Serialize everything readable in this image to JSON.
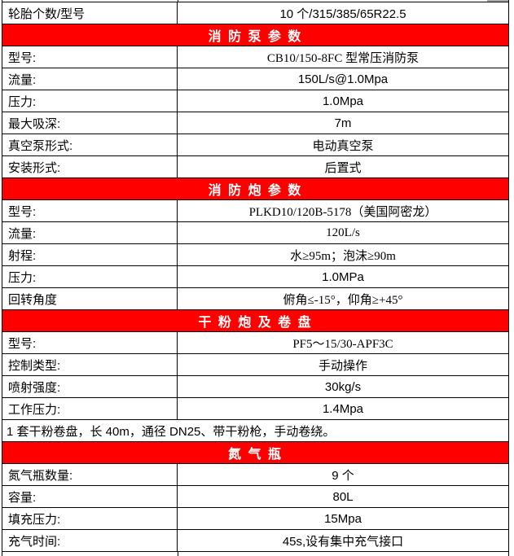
{
  "table": {
    "rows": [
      {
        "type": "kv",
        "label": "轮胎个数/型号",
        "value": "10 个/315/385/65R22.5"
      },
      {
        "type": "section",
        "title": "消 防 泵 参 数"
      },
      {
        "type": "kv",
        "label": "型号:",
        "value": "CB10/150-8FC 型常压消防泵"
      },
      {
        "type": "kv",
        "label": "流量:",
        "value": "150L/s@1.0Mpa"
      },
      {
        "type": "kv",
        "label": "压力:",
        "value": "1.0Mpa"
      },
      {
        "type": "kv",
        "label": "最大吸深:",
        "value": "7m"
      },
      {
        "type": "kv",
        "label": "真空泵形式:",
        "value": "电动真空泵"
      },
      {
        "type": "kv",
        "label": "安装形式:",
        "value": "后置式"
      },
      {
        "type": "section",
        "title": "消 防 炮 参 数"
      },
      {
        "type": "kv",
        "label": "型号:",
        "value": "PLKD10/120B-5178（美国阿密龙）"
      },
      {
        "type": "kv",
        "label": "流量:",
        "value": "120L/s"
      },
      {
        "type": "kv",
        "label": "射程:",
        "value": "水≥95m；泡沫≥90m"
      },
      {
        "type": "kv",
        "label": "压力:",
        "value": "1.0MPa"
      },
      {
        "type": "kv",
        "label": "回转角度",
        "value": "俯角≤-15°，仰角≥+45°"
      },
      {
        "type": "section",
        "title": "干 粉 炮 及 卷 盘"
      },
      {
        "type": "kv",
        "label": "型号:",
        "value": "PF5～15/30-APF3C"
      },
      {
        "type": "kv",
        "label": "控制类型:",
        "value": "手动操作"
      },
      {
        "type": "kv",
        "label": "喷射强度:",
        "value": "30kg/s"
      },
      {
        "type": "kv",
        "label": "工作压力:",
        "value": "1.4Mpa"
      },
      {
        "type": "note",
        "text": "1 套干粉卷盘，长 40m，通径 DN25、带干粉枪，手动卷绕。"
      },
      {
        "type": "section",
        "title": "氮 气 瓶"
      },
      {
        "type": "kv",
        "label": "氮气瓶数量:",
        "value": "9 个"
      },
      {
        "type": "kv",
        "label": "容量:",
        "value": "80L"
      },
      {
        "type": "kv",
        "label": "填充压力:",
        "value": "15Mpa"
      },
      {
        "type": "kv",
        "label": "充气时间:",
        "value": "45s,设有集中充气接口"
      }
    ],
    "colors": {
      "section_background": "#FF0000",
      "section_text": "#FFFFFF",
      "border": "#000000",
      "body_text": "#000000",
      "row_background": "#FFFFFF"
    }
  }
}
